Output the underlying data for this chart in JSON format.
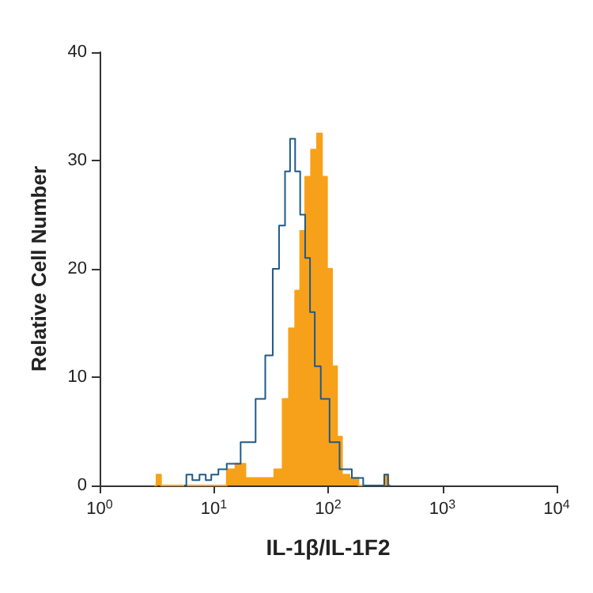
{
  "chart_data": {
    "type": "area",
    "xlabel": "IL-1β/IL-1F2",
    "ylabel": "Relative Cell Number",
    "log": "x",
    "grid": false,
    "marker": "none",
    "xlim": [
      1,
      10000
    ],
    "xticks": [
      {
        "value": 1,
        "label": "10$^{0}$"
      },
      {
        "value": 10,
        "label": "10$^{1}$"
      },
      {
        "value": 100,
        "label": "10$^{2}$"
      },
      {
        "value": 1000,
        "label": "10$^{3}$"
      },
      {
        "value": 10000,
        "label": "10$^{4}$"
      }
    ],
    "ylim": [
      0,
      40
    ],
    "yticks": [
      0,
      10,
      20,
      30,
      40
    ],
    "series": [
      {
        "color": "#f7a11a",
        "x": [
          3,
          3.3,
          3.6,
          12,
          14,
          17,
          21,
          30,
          38,
          42,
          49,
          54,
          60,
          66,
          76,
          84,
          93,
          103,
          114,
          126,
          139,
          170,
          200,
          300,
          324,
          350
        ],
        "values": [
          0,
          1,
          0,
          0,
          1.5,
          2,
          0.7,
          0.7,
          1.5,
          8,
          14.5,
          18,
          23.5,
          28.5,
          31,
          32.5,
          28.5,
          20,
          11,
          4.5,
          1,
          0.7,
          0,
          0,
          1,
          0
        ]
      },
      {
        "type": "step",
        "color": "#1f5a88",
        "x": [
          5.5,
          6,
          7,
          8,
          9,
          10,
          12,
          14,
          21,
          25.6,
          31,
          34.6,
          40,
          44,
          49,
          54,
          60,
          66,
          73,
          80,
          93,
          114,
          139,
          187,
          220,
          300,
          320,
          350
        ],
        "values": [
          0,
          1,
          0.5,
          1,
          0.5,
          1,
          1.5,
          2,
          4,
          8,
          12,
          20,
          24,
          29,
          32,
          29,
          25,
          21,
          16,
          11,
          8,
          4,
          1.5,
          0.7,
          0,
          0,
          1,
          0
        ]
      }
    ]
  }
}
